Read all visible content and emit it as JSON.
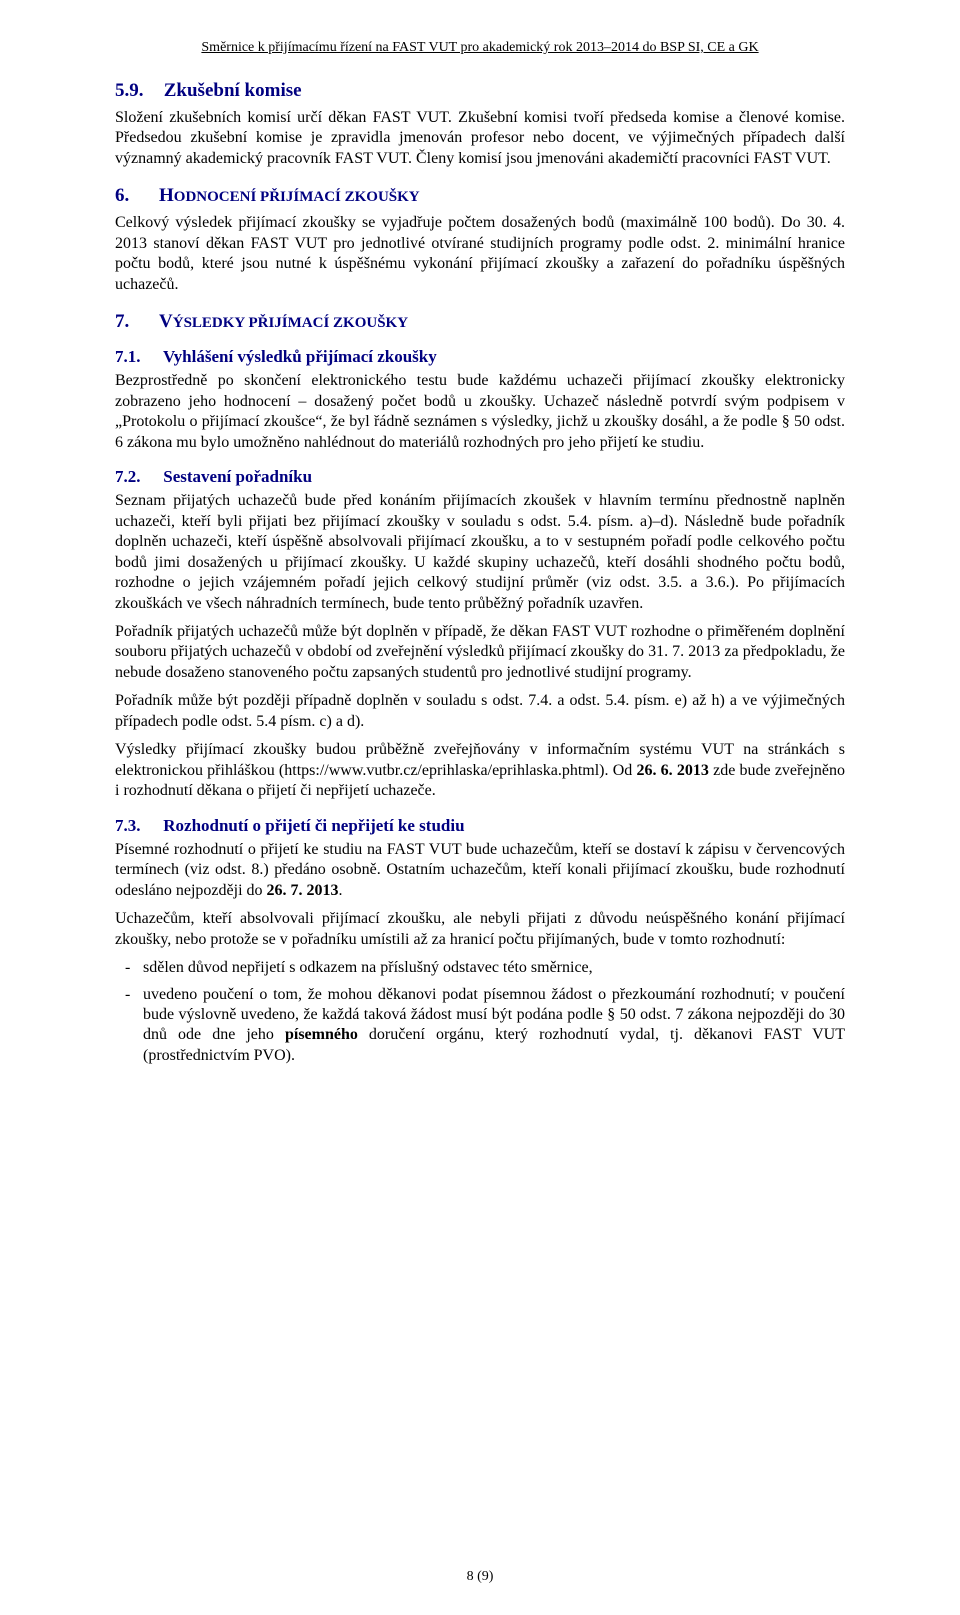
{
  "header": "Směrnice k přijímacímu řízení na FAST VUT pro akademický rok 2013–2014 do BSP SI, CE a GK",
  "s59": {
    "num": "5.9.",
    "title": "Zkušební komise",
    "p1": "Složení zkušebních komisí určí děkan FAST VUT. Zkušební komisi tvoří předseda komise a členové komise. Předsedou zkušební komise je zpravidla jmenován profesor nebo docent, ve výjimečných případech další významný akademický pracovník FAST VUT. Členy komisí jsou jmenováni akademičtí pracovníci FAST VUT."
  },
  "s6": {
    "num": "6.",
    "first": "H",
    "rest": "ODNOCENÍ PŘIJÍMACÍ ZKOUŠKY",
    "p1": "Celkový výsledek přijímací zkoušky se vyjadřuje počtem dosažených bodů (maximálně 100 bodů). Do 30. 4. 2013 stanoví děkan FAST VUT pro jednotlivé otvírané studijních programy podle odst. 2. minimální hranice počtu bodů, které jsou nutné k úspěšnému vykonání přijímací zkoušky a zařazení do pořadníku úspěšných uchazečů."
  },
  "s7": {
    "num": "7.",
    "first": "V",
    "rest": "ÝSLEDKY PŘIJÍMACÍ ZKOUŠKY"
  },
  "s71": {
    "num": "7.1.",
    "title": "Vyhlášení výsledků přijímací zkoušky",
    "p1": "Bezprostředně po skončení elektronického testu bude každému uchazeči přijímací zkoušky elektronicky zobrazeno jeho hodnocení – dosažený počet bodů u zkoušky. Uchazeč následně potvrdí svým podpisem v „Protokolu o přijímací zkoušce“, že byl řádně seznámen s výsledky, jichž u zkoušky dosáhl, a že podle § 50 odst. 6 zákona mu bylo umožněno nahlédnout do materiálů rozhodných pro jeho přijetí ke studiu."
  },
  "s72": {
    "num": "7.2.",
    "title": "Sestavení pořadníku",
    "p1": "Seznam přijatých uchazečů bude před konáním přijímacích zkoušek v hlavním termínu přednostně naplněn uchazeči, kteří byli přijati bez přijímací zkoušky v souladu s odst. 5.4. písm. a)–d). Následně bude pořadník doplněn uchazeči, kteří úspěšně absolvovali přijímací zkoušku, a to v sestupném pořadí podle celkového počtu bodů jimi dosažených u přijímací zkoušky. U každé skupiny uchazečů, kteří dosáhli shodného počtu bodů, rozhodne o jejich vzájemném pořadí jejich celkový studijní průměr (viz odst. 3.5. a 3.6.). Po přijímacích zkouškách ve všech náhradních termínech, bude tento průběžný pořadník uzavřen.",
    "p2": "Pořadník přijatých uchazečů může být doplněn v případě, že děkan FAST VUT rozhodne o přiměřeném doplnění souboru přijatých uchazečů v období od zveřejnění výsledků přijímací zkoušky do 31. 7. 2013 za předpokladu, že nebude dosaženo stanoveného počtu zapsaných studentů pro jednotlivé studijní programy.",
    "p3": "Pořadník může být později případně doplněn v souladu s odst. 7.4. a odst. 5.4. písm. e) až h) a ve výjimečných případech podle odst. 5.4 písm. c) a d).",
    "p4a": "Výsledky přijímací zkoušky budou průběžně zveřejňovány v informačním systému VUT na stránkách s elektronickou přihláškou (https://www.vutbr.cz/eprihlaska/eprihlaska.phtml). Od ",
    "p4b": "26. 6. 2013",
    "p4c": " zde bude zveřejněno i rozhodnutí děkana o přijetí či nepřijetí uchazeče."
  },
  "s73": {
    "num": "7.3.",
    "title": "Rozhodnutí o přijetí či nepřijetí ke studiu",
    "p1a": "Písemné rozhodnutí o přijetí ke studiu na FAST VUT bude uchazečům, kteří se dostaví k zápisu v červencových termínech (viz odst. 8.) předáno osobně. Ostatním uchazečům, kteří konali přijímací zkoušku, bude rozhodnutí odesláno nejpozději do ",
    "p1b": "26. 7. 2013",
    "p1c": ".",
    "p2": "Uchazečům, kteří absolvovali přijímací zkoušku, ale nebyli přijati z důvodu neúspěšného konání přijímací zkoušky, nebo protože se v pořadníku umístili až za hranicí počtu přijímaných, bude v tomto rozhodnutí:",
    "li1": "sdělen důvod nepřijetí s odkazem na příslušný odstavec této směrnice,",
    "li2a": "uvedeno poučení o tom, že mohou děkanovi podat písemnou žádost o přezkoumání rozhodnutí; v poučení bude výslovně uvedeno, že každá taková žádost musí být podána podle § 50 odst. 7 zákona nejpozději do 30 dnů ode dne jeho ",
    "li2b": "písemného",
    "li2c": " doručení orgánu, který rozhodnutí vydal, tj. děkanovi FAST VUT (prostřednictvím PVO)."
  },
  "footer": "8 (9)"
}
